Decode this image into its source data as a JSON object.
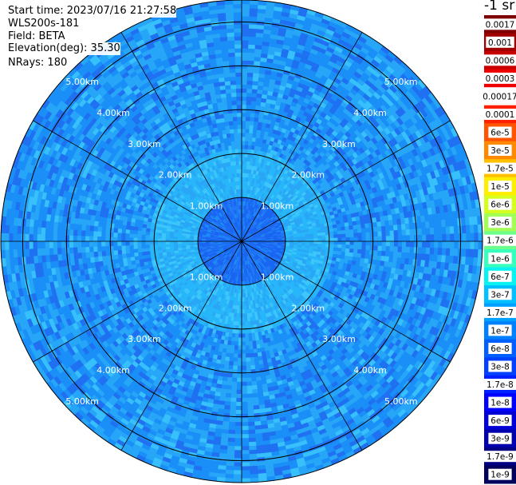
{
  "header": {
    "start_time": "Start time: 2023/07/16 21:27:58",
    "instrument": "WLS200s-181",
    "field": "Field: BETA",
    "elevation": "Elevation(deg): 35.30",
    "nrays": "NRays: 180"
  },
  "colorbar": {
    "unit": "-1 sr",
    "labels": [
      "0.0017",
      "0.001",
      "0.0006",
      "0.0003",
      "0.00017",
      "0.0001",
      "6e-5",
      "3e-5",
      "1.7e-5",
      "1e-5",
      "6e-6",
      "3e-6",
      "1.7e-6",
      "1e-6",
      "6e-7",
      "3e-7",
      "1.7e-7",
      "1e-7",
      "6e-8",
      "3e-8",
      "1.7e-8",
      "1e-8",
      "6e-9",
      "3e-9",
      "1.7e-9",
      "1e-9"
    ],
    "colors": [
      "#7f0000",
      "#a00000",
      "#c80000",
      "#ee0000",
      "#ffffff",
      "#ff2000",
      "#ff5500",
      "#ff8a00",
      "#ffc000",
      "#ffee00",
      "#d6ff1f",
      "#a2ff55",
      "#6dff8a",
      "#39ffbe",
      "#08f2f2",
      "#00c0ff",
      "#00a0ff",
      "#0080ff",
      "#0060ff",
      "#0040ff",
      "#0020ff",
      "#0000ff",
      "#0000d6",
      "#0000ad",
      "#000085",
      "#00005c"
    ]
  },
  "chart_data": {
    "type": "heatmap",
    "projection": "polar (PPI)",
    "field": "BETA",
    "rays": 180,
    "max_range_km": 5.5,
    "range_rings_km": [
      1,
      2,
      3,
      4,
      5
    ],
    "ring_labels": [
      "1.00km",
      "2.00km",
      "3.00km",
      "4.00km",
      "5.00km"
    ],
    "azimuth_lines_deg": [
      0,
      30,
      60,
      90,
      120,
      150,
      180,
      210,
      240,
      270,
      300,
      330
    ],
    "dominant_values_sr-1": {
      "near_center_0_1km": "1e-8",
      "ring_1_2km": "1.7e-7",
      "outer_2_5.5km": "1e-7 to 6e-8"
    }
  }
}
